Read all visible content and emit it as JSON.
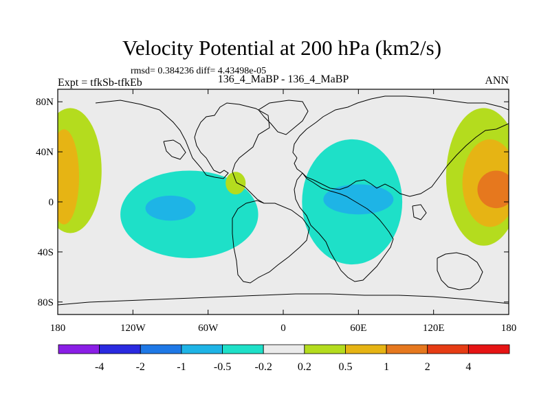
{
  "chart_data": {
    "type": "heatmap",
    "title": "Velocity Potential at 200 hPa (km2/s)",
    "stats_line": "rmsd= 0.384236 diff= 4.43498e-05",
    "left_label": "Expt = tfkSb-tfkEb",
    "center_label": "136_4_MaBP - 136_4_MaBP",
    "right_label": "ANN",
    "x_range": [
      -180,
      180
    ],
    "y_range": [
      -90,
      90
    ],
    "x_ticks": [
      {
        "value": -180,
        "label": "180"
      },
      {
        "value": -120,
        "label": "120W"
      },
      {
        "value": -60,
        "label": "60W"
      },
      {
        "value": 0,
        "label": "0"
      },
      {
        "value": 60,
        "label": "60E"
      },
      {
        "value": 120,
        "label": "120E"
      },
      {
        "value": 180,
        "label": "180"
      }
    ],
    "y_ticks": [
      {
        "value": 80,
        "label": "80N"
      },
      {
        "value": 40,
        "label": "40N"
      },
      {
        "value": 0,
        "label": "0"
      },
      {
        "value": -40,
        "label": "40S"
      },
      {
        "value": -80,
        "label": "80S"
      }
    ],
    "colorbar": {
      "colors": [
        "#8a1ee6",
        "#2a2ae0",
        "#1e78e6",
        "#1eb4e6",
        "#1ee0c8",
        "#ebebeb",
        "#b4dc1e",
        "#e6b414",
        "#e6781e",
        "#e63c14",
        "#e61414"
      ],
      "labels": [
        "-4",
        "-2",
        "-1",
        "-0.5",
        "-0.2",
        "0.2",
        "0.5",
        "1",
        "2",
        "4"
      ]
    },
    "regions": [
      {
        "name": "pacific-west-positive",
        "level": "0.5",
        "color": "#b4dc1e",
        "lon": -170,
        "lat": 25,
        "lon_radius": 25,
        "lat_radius": 50
      },
      {
        "name": "pacific-west-positive-core",
        "level": "1",
        "color": "#e6b414",
        "lon": -175,
        "lat": 20,
        "lon_radius": 12,
        "lat_radius": 38
      },
      {
        "name": "pacific-east-positive",
        "level": "0.5",
        "color": "#b4dc1e",
        "lon": 160,
        "lat": 20,
        "lon_radius": 30,
        "lat_radius": 55
      },
      {
        "name": "pacific-east-positive-mid",
        "level": "1",
        "color": "#e6b414",
        "lon": 165,
        "lat": 15,
        "lon_radius": 22,
        "lat_radius": 35
      },
      {
        "name": "pacific-east-positive-core",
        "level": "2",
        "color": "#e6781e",
        "lon": 170,
        "lat": 10,
        "lon_radius": 15,
        "lat_radius": 15
      },
      {
        "name": "atlantic-negative",
        "level": "-0.2",
        "color": "#1ee0c8",
        "lon": -75,
        "lat": -10,
        "lon_radius": 55,
        "lat_radius": 35
      },
      {
        "name": "atlantic-negative-core",
        "level": "-0.5",
        "color": "#1eb4e6",
        "lon": -90,
        "lat": -5,
        "lon_radius": 20,
        "lat_radius": 10
      },
      {
        "name": "north-america-positive",
        "level": "0.5",
        "color": "#b4dc1e",
        "lon": -38,
        "lat": 15,
        "lon_radius": 8,
        "lat_radius": 9
      },
      {
        "name": "africa-indian-negative",
        "level": "-0.2",
        "color": "#1ee0c8",
        "lon": 55,
        "lat": 0,
        "lon_radius": 40,
        "lat_radius": 50
      },
      {
        "name": "africa-indian-negative-core",
        "level": "-0.5",
        "color": "#1eb4e6",
        "lon": 60,
        "lat": 2,
        "lon_radius": 28,
        "lat_radius": 12
      }
    ]
  }
}
